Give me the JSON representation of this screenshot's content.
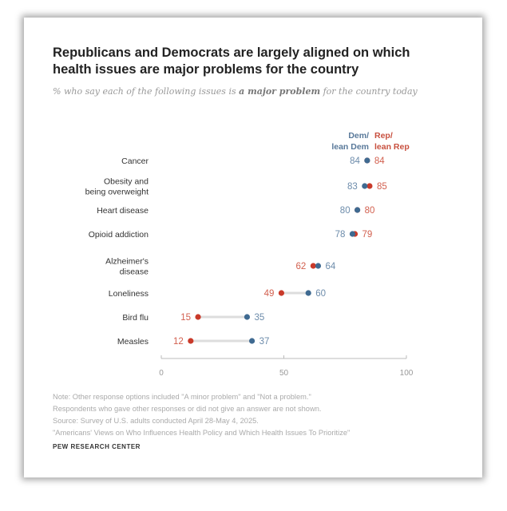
{
  "chart_data": {
    "type": "dot",
    "title": "Republicans and Democrats are largely aligned on which health issues are major problems for the country",
    "subtitle_pre": "% who say each of the following issues is ",
    "subtitle_bold": "a major problem",
    "subtitle_post": " for the country today",
    "legend": {
      "dem": "Dem/ lean Dem",
      "dem_line1": "Dem/",
      "dem_line2": "lean Dem",
      "rep_line1": "Rep/",
      "rep_line2": "lean Rep"
    },
    "categories": [
      "Cancer",
      "Obesity and being overweight",
      "Heart disease",
      "Opioid addiction",
      "Alzheimer's disease",
      "Loneliness",
      "Bird flu",
      "Measles"
    ],
    "category_lines": [
      [
        "Cancer"
      ],
      [
        "Obesity and",
        "being overweight"
      ],
      [
        "Heart disease"
      ],
      [
        "Opioid addiction"
      ],
      [
        "Alzheimer's",
        "disease"
      ],
      [
        "Loneliness"
      ],
      [
        "Bird flu"
      ],
      [
        "Measles"
      ]
    ],
    "series": [
      {
        "name": "Dem/lean Dem",
        "color": "#3f6a91",
        "label_color": "#6d8cab",
        "values": [
          84,
          83,
          80,
          78,
          64,
          60,
          35,
          37
        ]
      },
      {
        "name": "Rep/lean Rep",
        "color": "#c93a2a",
        "label_color": "#d2604f",
        "values": [
          84,
          85,
          80,
          79,
          62,
          49,
          15,
          12
        ]
      }
    ],
    "xlim": [
      0,
      100
    ],
    "xticks": [
      0,
      50,
      100
    ],
    "grid": false
  },
  "notes": [
    "Note: Other response options included \"A minor problem\" and \"Not a problem.\"",
    "Respondents who gave other responses or did not give an answer are not shown.",
    "Source: Survey of U.S. adults conducted April 28-May 4, 2025.",
    "\"Americans' Views on Who Influences Health Policy and Which Health Issues To Prioritize\""
  ],
  "brand": "PEW RESEARCH CENTER"
}
